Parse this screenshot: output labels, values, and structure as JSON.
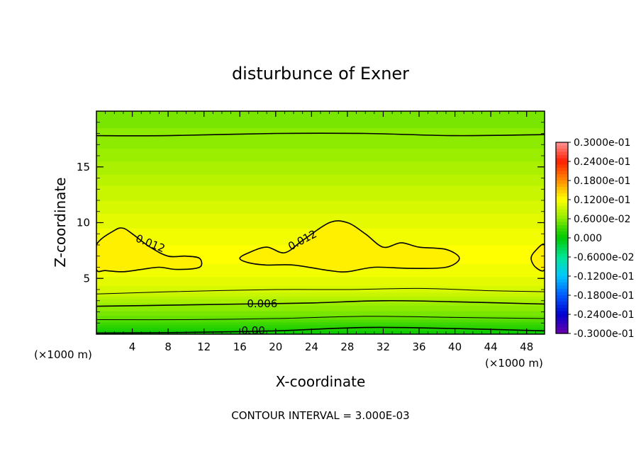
{
  "chart_data": {
    "type": "heatmap",
    "title": "disturbunce of Exner",
    "xlabel": "X-coordinate",
    "ylabel": "Z-coordinate",
    "x_unit_left": "(×1000 m)",
    "x_unit_right": "(×1000 m)",
    "footer": "CONTOUR INTERVAL = 3.000E-03",
    "xlim": [
      0,
      50
    ],
    "ylim": [
      0,
      20
    ],
    "x_ticks": [
      4,
      8,
      12,
      16,
      20,
      24,
      28,
      32,
      36,
      40,
      44,
      48
    ],
    "x_tick_labels": [
      "4",
      "8",
      "12",
      "16",
      "20",
      "24",
      "28",
      "32",
      "36",
      "40",
      "44",
      "48"
    ],
    "y_ticks": [
      5,
      10,
      15
    ],
    "y_tick_labels": [
      "5",
      "10",
      "15"
    ],
    "contour_interval": 0.003,
    "contour_labels": [
      {
        "text": "0.012",
        "x": 6,
        "y": 8.1,
        "angle": 22
      },
      {
        "text": "0.012",
        "x": 23,
        "y": 8.4,
        "angle": -28
      },
      {
        "text": "0.006",
        "x": 18.5,
        "y": 2.7,
        "angle": 0
      },
      {
        "text": "0.00",
        "x": 17.5,
        "y": 0.3,
        "angle": 0
      }
    ],
    "colorbar": {
      "labels": [
        "0.3000e-01",
        "0.2400e-01",
        "0.1800e-01",
        "0.1200e-01",
        "0.6000e-02",
        "0.000",
        "-0.6000e-02",
        "-0.1200e-01",
        "-0.1800e-01",
        "-0.2400e-01",
        "-0.3000e-01"
      ],
      "vmin": -0.03,
      "vmax": 0.03
    },
    "field_profile": {
      "z": [
        0,
        0.5,
        1,
        1.5,
        2,
        2.5,
        3,
        3.5,
        4,
        5,
        6,
        7,
        8,
        9,
        10,
        11,
        12,
        13,
        14,
        15,
        16,
        17,
        18,
        19,
        20
      ],
      "value": [
        0.0,
        0.0015,
        0.003,
        0.0045,
        0.0055,
        0.0062,
        0.0075,
        0.0088,
        0.0098,
        0.0108,
        0.0115,
        0.0119,
        0.0116,
        0.0112,
        0.0106,
        0.01,
        0.0094,
        0.0088,
        0.0081,
        0.0074,
        0.0068,
        0.0062,
        0.0058,
        0.0054,
        0.005
      ]
    },
    "contours": [
      {
        "level": 0.012,
        "kind": "closed",
        "points": [
          [
            0,
            8.0
          ],
          [
            2,
            9.3
          ],
          [
            3,
            9.5
          ],
          [
            4,
            9.0
          ],
          [
            6,
            7.8
          ],
          [
            8,
            7.0
          ],
          [
            10,
            7.0
          ],
          [
            11.5,
            6.8
          ],
          [
            11.5,
            6.0
          ],
          [
            9,
            5.8
          ],
          [
            7,
            6.0
          ],
          [
            5,
            5.8
          ],
          [
            3,
            5.6
          ],
          [
            1,
            5.7
          ],
          [
            0,
            5.8
          ]
        ]
      },
      {
        "level": 0.012,
        "kind": "closed",
        "points": [
          [
            16,
            6.8
          ],
          [
            17,
            7.3
          ],
          [
            19,
            7.8
          ],
          [
            21,
            7.3
          ],
          [
            23,
            8.4
          ],
          [
            26,
            10.0
          ],
          [
            28,
            10.0
          ],
          [
            30,
            9.0
          ],
          [
            32,
            7.8
          ],
          [
            34,
            8.2
          ],
          [
            36,
            7.8
          ],
          [
            39,
            7.6
          ],
          [
            40.5,
            6.8
          ],
          [
            39,
            6.0
          ],
          [
            35,
            5.9
          ],
          [
            31,
            6.0
          ],
          [
            28,
            5.6
          ],
          [
            26,
            5.7
          ],
          [
            22,
            6.2
          ],
          [
            19,
            6.2
          ],
          [
            17,
            6.4
          ]
        ]
      },
      {
        "level": 0.012,
        "kind": "closed",
        "points": [
          [
            50,
            8.0
          ],
          [
            49,
            7.5
          ],
          [
            48.5,
            6.8
          ],
          [
            49,
            6.0
          ],
          [
            50,
            5.8
          ]
        ]
      },
      {
        "level": 0.006,
        "kind": "line",
        "points": [
          [
            0,
            17.8
          ],
          [
            8,
            17.8
          ],
          [
            20,
            18.0
          ],
          [
            30,
            18.0
          ],
          [
            40,
            17.8
          ],
          [
            50,
            17.9
          ]
        ]
      },
      {
        "level": 0.009,
        "kind": "line",
        "points": [
          [
            0,
            3.6
          ],
          [
            8,
            3.8
          ],
          [
            20,
            4.0
          ],
          [
            28,
            4.0
          ],
          [
            36,
            4.1
          ],
          [
            44,
            3.9
          ],
          [
            50,
            3.8
          ]
        ]
      },
      {
        "level": 0.006,
        "kind": "line",
        "points": [
          [
            0,
            2.5
          ],
          [
            8,
            2.6
          ],
          [
            16,
            2.7
          ],
          [
            24,
            2.8
          ],
          [
            32,
            3.0
          ],
          [
            40,
            2.9
          ],
          [
            50,
            2.7
          ]
        ]
      },
      {
        "level": 0.003,
        "kind": "line",
        "points": [
          [
            0,
            1.3
          ],
          [
            10,
            1.3
          ],
          [
            20,
            1.4
          ],
          [
            30,
            1.6
          ],
          [
            40,
            1.5
          ],
          [
            50,
            1.4
          ]
        ]
      },
      {
        "level": 0.0,
        "kind": "line",
        "points": [
          [
            0,
            0.1
          ],
          [
            10,
            0.15
          ],
          [
            20,
            0.3
          ],
          [
            30,
            0.6
          ],
          [
            40,
            0.5
          ],
          [
            50,
            0.3
          ]
        ]
      }
    ],
    "blobs": [
      {
        "x": 3,
        "y": 6.7,
        "value": 0.0135
      },
      {
        "x": 26.5,
        "y": 7.0,
        "value": 0.014
      }
    ],
    "grid": false,
    "legend": "right"
  }
}
